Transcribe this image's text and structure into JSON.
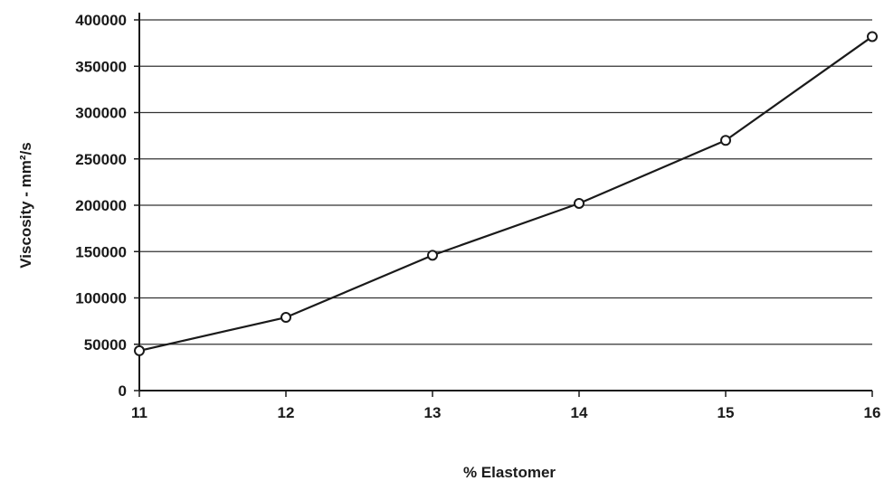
{
  "chart_data": {
    "type": "line",
    "title": "",
    "xlabel": "% Elastomer",
    "ylabel": "Viscosity - mm²/s",
    "x": [
      11,
      12,
      13,
      14,
      15,
      16
    ],
    "series": [
      {
        "values": [
          43000,
          79000,
          146000,
          202000,
          270000,
          382000
        ]
      }
    ],
    "xlim": [
      11,
      16
    ],
    "ylim": [
      0,
      400000
    ],
    "xticks": [
      "11",
      "12",
      "13",
      "14",
      "15",
      "16"
    ],
    "yticks": [
      "0",
      "50000",
      "100000",
      "150000",
      "200000",
      "250000",
      "300000",
      "350000",
      "400000"
    ],
    "grid": "horizontal",
    "legend": "none",
    "colors": {
      "line": "#1a1a1a",
      "grid": "#333333",
      "background": "#ffffff"
    }
  }
}
